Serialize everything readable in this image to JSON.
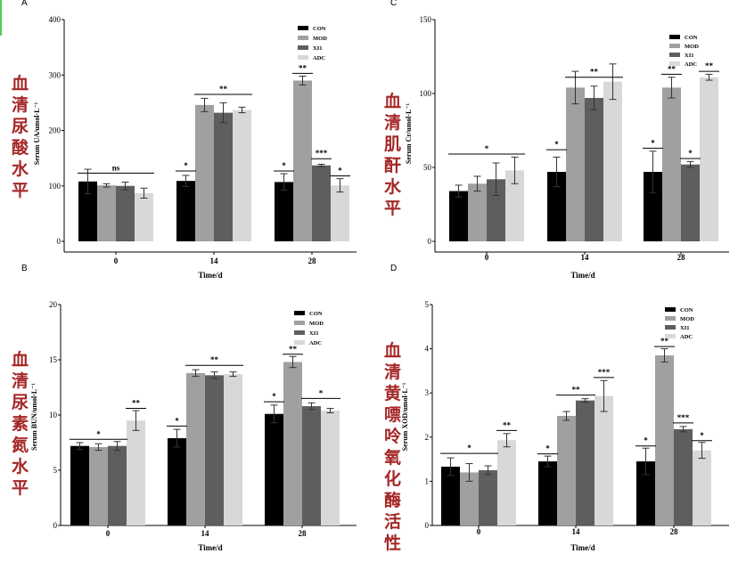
{
  "chart_data": [
    {
      "type": "bar",
      "panel_label": "A",
      "side_label": "血清尿酸水平",
      "ylabel": "Serum UA/umol·L⁻¹",
      "xlabel": "Time/d",
      "ylim": [
        0,
        400
      ],
      "yticks": [
        "0",
        "100",
        "200",
        "300",
        "400"
      ],
      "categories": [
        "0",
        "14",
        "28"
      ],
      "series": [
        {
          "name": "CON",
          "color": "#000000",
          "values": [
            108,
            109,
            107
          ],
          "errors": [
            22,
            10,
            15
          ]
        },
        {
          "name": "MOD",
          "color": "#a0a0a0",
          "values": [
            101,
            246,
            290
          ],
          "errors": [
            3,
            12,
            8
          ]
        },
        {
          "name": "XI1",
          "color": "#5e5e5e",
          "values": [
            100,
            232,
            137
          ],
          "errors": [
            7,
            18,
            2
          ]
        },
        {
          "name": "ADC",
          "color": "#d8d8d8",
          "values": [
            87,
            237,
            101
          ],
          "errors": [
            9,
            5,
            12
          ]
        }
      ],
      "brackets": [
        {
          "label": "ns",
          "group": 0,
          "from": 0,
          "to": 3,
          "y": 123
        },
        {
          "label": "*",
          "group": 1,
          "from": 0,
          "to": 0,
          "y": 127
        },
        {
          "label": "**",
          "group": 1,
          "from": 1,
          "to": 3,
          "y": 265
        },
        {
          "label": "*",
          "group": 2,
          "from": 0,
          "to": 0,
          "y": 127
        },
        {
          "label": "**",
          "group": 2,
          "from": 1,
          "to": 1,
          "y": 303
        },
        {
          "label": "***",
          "group": 2,
          "from": 2,
          "to": 2,
          "y": 149
        },
        {
          "label": "*",
          "group": 2,
          "from": 3,
          "to": 3,
          "y": 118
        }
      ]
    },
    {
      "type": "bar",
      "panel_label": "C",
      "side_label": "血清肌酐水平",
      "ylabel": "Serum Cr/umol·L⁻¹",
      "xlabel": "Time/d",
      "ylim": [
        0,
        150
      ],
      "yticks": [
        "0",
        "50",
        "100",
        "150"
      ],
      "categories": [
        "0",
        "14",
        "28"
      ],
      "series": [
        {
          "name": "CON",
          "color": "#000000",
          "values": [
            34,
            47,
            47
          ],
          "errors": [
            4,
            10,
            14
          ]
        },
        {
          "name": "MOD",
          "color": "#a0a0a0",
          "values": [
            39,
            104,
            104
          ],
          "errors": [
            5,
            11,
            7
          ]
        },
        {
          "name": "XI1",
          "color": "#5e5e5e",
          "values": [
            42,
            97,
            52
          ],
          "errors": [
            11,
            8,
            2
          ]
        },
        {
          "name": "ADC",
          "color": "#d8d8d8",
          "values": [
            48,
            108,
            111
          ],
          "errors": [
            9,
            12,
            2
          ]
        }
      ],
      "brackets": [
        {
          "label": "*",
          "group": 0,
          "from": 0,
          "to": 3,
          "y": 59
        },
        {
          "label": "*",
          "group": 1,
          "from": 0,
          "to": 0,
          "y": 62
        },
        {
          "label": "**",
          "group": 1,
          "from": 1,
          "to": 3,
          "y": 111
        },
        {
          "label": "*",
          "group": 2,
          "from": 0,
          "to": 0,
          "y": 63
        },
        {
          "label": "**",
          "group": 2,
          "from": 1,
          "to": 1,
          "y": 113
        },
        {
          "label": "*",
          "group": 2,
          "from": 2,
          "to": 2,
          "y": 56
        },
        {
          "label": "**",
          "group": 2,
          "from": 3,
          "to": 3,
          "y": 115
        }
      ]
    },
    {
      "type": "bar",
      "panel_label": "B",
      "side_label": "血清尿素氮水平",
      "ylabel": "Serum BUN/umol·L⁻¹",
      "xlabel": "Time/d",
      "ylim": [
        0,
        20
      ],
      "yticks": [
        "0",
        "5",
        "10",
        "15",
        "20"
      ],
      "categories": [
        "0",
        "14",
        "28"
      ],
      "series": [
        {
          "name": "CON",
          "color": "#000000",
          "values": [
            7.2,
            7.9,
            10.1
          ],
          "errors": [
            0.3,
            0.8,
            0.8
          ]
        },
        {
          "name": "MOD",
          "color": "#a0a0a0",
          "values": [
            7.1,
            13.8,
            14.8
          ],
          "errors": [
            0.3,
            0.3,
            0.5
          ]
        },
        {
          "name": "XI1",
          "color": "#5e5e5e",
          "values": [
            7.2,
            13.6,
            10.8
          ],
          "errors": [
            0.4,
            0.3,
            0.3
          ]
        },
        {
          "name": "ADC",
          "color": "#d8d8d8",
          "values": [
            9.5,
            13.7,
            10.4
          ],
          "errors": [
            0.9,
            0.2,
            0.2
          ]
        }
      ],
      "brackets": [
        {
          "label": "*",
          "group": 0,
          "from": 0,
          "to": 2,
          "y": 7.8
        },
        {
          "label": "**",
          "group": 0,
          "from": 3,
          "to": 3,
          "y": 10.6
        },
        {
          "label": "*",
          "group": 1,
          "from": 0,
          "to": 0,
          "y": 9.0
        },
        {
          "label": "**",
          "group": 1,
          "from": 1,
          "to": 3,
          "y": 14.5
        },
        {
          "label": "*",
          "group": 2,
          "from": 0,
          "to": 0,
          "y": 11.2
        },
        {
          "label": "**",
          "group": 2,
          "from": 1,
          "to": 1,
          "y": 15.5
        },
        {
          "label": "*",
          "group": 2,
          "from": 2,
          "to": 3,
          "y": 11.5
        }
      ]
    },
    {
      "type": "bar",
      "panel_label": "D",
      "side_label": "血清黄嘌呤氧化酶活性",
      "ylabel": "Serum XOD/umol·L⁻¹",
      "xlabel": "Time/d",
      "ylim": [
        0,
        5
      ],
      "yticks": [
        "0",
        "1",
        "2",
        "3",
        "4",
        "5"
      ],
      "categories": [
        "0",
        "14",
        "28"
      ],
      "series": [
        {
          "name": "CON",
          "color": "#000000",
          "values": [
            1.33,
            1.45,
            1.45
          ],
          "errors": [
            0.2,
            0.12,
            0.3
          ]
        },
        {
          "name": "MOD",
          "color": "#a0a0a0",
          "values": [
            1.2,
            2.48,
            3.85
          ],
          "errors": [
            0.2,
            0.1,
            0.15
          ]
        },
        {
          "name": "XI1",
          "color": "#5e5e5e",
          "values": [
            1.25,
            2.83,
            2.18
          ],
          "errors": [
            0.1,
            0.04,
            0.06
          ]
        },
        {
          "name": "ADC",
          "color": "#d8d8d8",
          "values": [
            1.93,
            2.93,
            1.7
          ],
          "errors": [
            0.15,
            0.35,
            0.18
          ]
        }
      ],
      "brackets": [
        {
          "label": "*",
          "group": 0,
          "from": 0,
          "to": 2,
          "y": 1.63
        },
        {
          "label": "**",
          "group": 0,
          "from": 3,
          "to": 3,
          "y": 2.15
        },
        {
          "label": "*",
          "group": 1,
          "from": 0,
          "to": 0,
          "y": 1.62
        },
        {
          "label": "**",
          "group": 1,
          "from": 1,
          "to": 2,
          "y": 2.95
        },
        {
          "label": "***",
          "group": 1,
          "from": 3,
          "to": 3,
          "y": 3.35
        },
        {
          "label": "*",
          "group": 2,
          "from": 0,
          "to": 0,
          "y": 1.8
        },
        {
          "label": "**",
          "group": 2,
          "from": 1,
          "to": 1,
          "y": 4.05
        },
        {
          "label": "***",
          "group": 2,
          "from": 2,
          "to": 2,
          "y": 2.32
        },
        {
          "label": "*",
          "group": 2,
          "from": 3,
          "to": 3,
          "y": 1.92
        }
      ]
    }
  ]
}
